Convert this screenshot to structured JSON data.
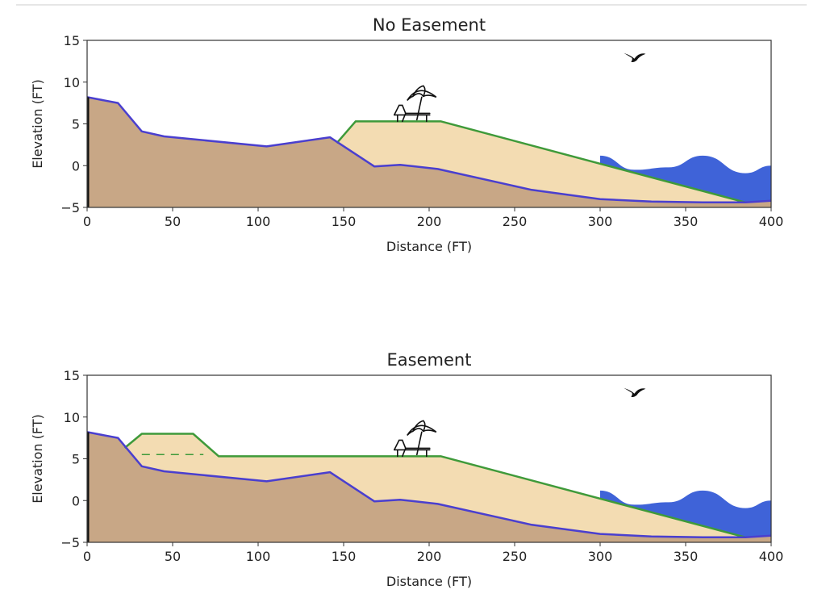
{
  "chart_data": [
    {
      "type": "area",
      "title": "No Easement",
      "xlabel": "Distance (FT)",
      "ylabel": "Elevation (FT)",
      "xlim": [
        0,
        400
      ],
      "ylim": [
        -5,
        15
      ],
      "xticks": [
        0,
        50,
        100,
        150,
        200,
        250,
        300,
        350,
        400
      ],
      "yticks": [
        -5,
        0,
        5,
        10,
        15
      ],
      "grid": false,
      "series": [
        {
          "name": "existing ground",
          "x": [
            0,
            18,
            32,
            45,
            105,
            142,
            168,
            183,
            205,
            260,
            300,
            330,
            360,
            385,
            400
          ],
          "y": [
            8.2,
            7.5,
            4.1,
            3.5,
            2.3,
            3.4,
            -0.1,
            0.1,
            -0.4,
            -2.9,
            -4.0,
            -4.3,
            -4.4,
            -4.4,
            -4.2
          ]
        },
        {
          "name": "nourishment",
          "x": [
            146,
            157,
            207,
            385
          ],
          "y": [
            2.7,
            5.3,
            5.3,
            -4.4
          ]
        },
        {
          "name": "water",
          "x": [
            300,
            320,
            340,
            360,
            385,
            400
          ],
          "y": [
            1.2,
            -0.5,
            -0.2,
            1.2,
            -0.9,
            0.0
          ]
        }
      ],
      "annotations": [
        "beach-chair-umbrella-icon",
        "bird-icon"
      ]
    },
    {
      "type": "area",
      "title": "Easement",
      "xlabel": "Distance (FT)",
      "ylabel": "Elevation (FT)",
      "xlim": [
        0,
        400
      ],
      "ylim": [
        -5,
        15
      ],
      "xticks": [
        0,
        50,
        100,
        150,
        200,
        250,
        300,
        350,
        400
      ],
      "yticks": [
        -5,
        0,
        5,
        10,
        15
      ],
      "grid": false,
      "series": [
        {
          "name": "existing ground",
          "x": [
            0,
            18,
            32,
            45,
            105,
            142,
            168,
            183,
            205,
            260,
            300,
            330,
            360,
            385,
            400
          ],
          "y": [
            8.2,
            7.5,
            4.1,
            3.5,
            2.3,
            3.4,
            -0.1,
            0.1,
            -0.4,
            -2.9,
            -4.0,
            -4.3,
            -4.4,
            -4.4,
            -4.2
          ]
        },
        {
          "name": "nourishment",
          "x": [
            22,
            32,
            62,
            77,
            207,
            385
          ],
          "y": [
            6.3,
            8.0,
            8.0,
            5.3,
            5.3,
            -4.4
          ]
        },
        {
          "name": "easement line",
          "x": [
            32,
            68
          ],
          "y": [
            5.5,
            5.5
          ]
        },
        {
          "name": "water",
          "x": [
            300,
            320,
            340,
            360,
            385,
            400
          ],
          "y": [
            1.2,
            -0.5,
            -0.2,
            1.2,
            -0.9,
            0.0
          ]
        }
      ],
      "annotations": [
        "beach-chair-umbrella-icon",
        "bird-icon"
      ]
    }
  ],
  "colors": {
    "ground_fill": "#c8a786",
    "ground_line": "#4a3fcf",
    "sand_fill": "#f3dcb2",
    "sand_line": "#3f9a3a",
    "water_fill": "#3f63d8",
    "axis": "#333333"
  }
}
